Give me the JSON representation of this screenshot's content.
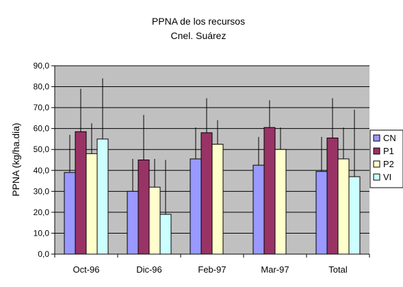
{
  "chart_data": {
    "type": "bar",
    "title": "PPNA de los recursos",
    "subtitle": "Cnel. Suárez",
    "xlabel": "",
    "ylabel": "PPNA (kg/ha.dia)",
    "ylim": [
      0,
      90
    ],
    "ytick_step": 10,
    "ytick_labels": [
      "0,0",
      "10,0",
      "20,0",
      "30,0",
      "40,0",
      "50,0",
      "60,0",
      "70,0",
      "80,0",
      "90,0"
    ],
    "categories": [
      "Oct-96",
      "Dic-96",
      "Feb-97",
      "Mar-97",
      "Total"
    ],
    "series": [
      {
        "name": "CN",
        "color": "#9999ff",
        "values": [
          39,
          30,
          45.5,
          42.5,
          39.5
        ],
        "err_upper": [
          57,
          45.5,
          60.5,
          56,
          56
        ]
      },
      {
        "name": "P1",
        "color": "#993366",
        "values": [
          58.5,
          45,
          58,
          60.5,
          55.5
        ],
        "err_upper": [
          79,
          66.5,
          74.5,
          73.5,
          74.5
        ]
      },
      {
        "name": "P2",
        "color": "#ffffcc",
        "values": [
          48,
          32,
          52.5,
          50,
          45.5
        ],
        "err_upper": [
          62.5,
          45.5,
          64,
          60.5,
          60.5
        ]
      },
      {
        "name": "VI",
        "color": "#ccffff",
        "values": [
          55,
          19,
          null,
          null,
          37
        ],
        "err_upper": [
          84,
          45,
          null,
          null,
          69
        ]
      }
    ],
    "grid": true,
    "plot_background": "#c0c0c0",
    "legend_position": "right"
  }
}
